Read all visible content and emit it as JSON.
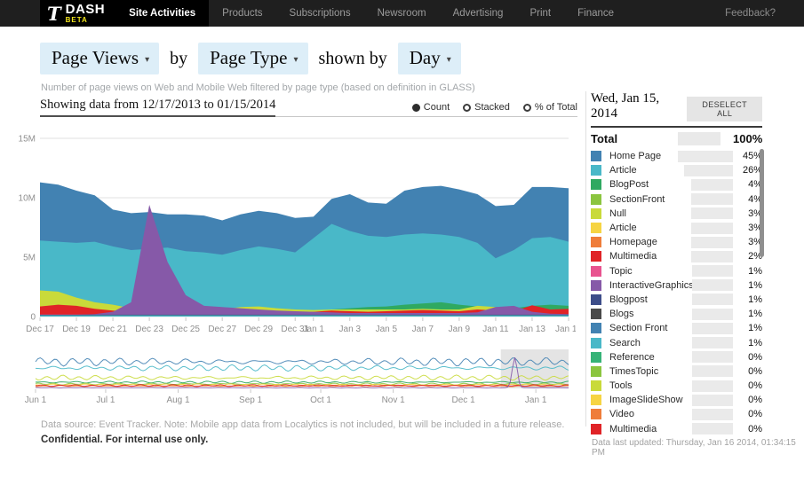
{
  "nav": {
    "logo": {
      "t": "T",
      "title": "DASH",
      "badge": "BETA"
    },
    "items": [
      {
        "label": "Site Activities",
        "active": true
      },
      {
        "label": "Products",
        "active": false
      },
      {
        "label": "Subscriptions",
        "active": false
      },
      {
        "label": "Newsroom",
        "active": false
      },
      {
        "label": "Advertising",
        "active": false
      },
      {
        "label": "Print",
        "active": false
      },
      {
        "label": "Finance",
        "active": false
      }
    ],
    "feedback": "Feedback?"
  },
  "controls": {
    "metric": "Page Views",
    "by": "by",
    "dimension": "Page Type",
    "shown_by": "shown by",
    "interval": "Day",
    "caret": "▾"
  },
  "subtitle": "Number of page views on Web and Mobile Web filtered by page type (based on definition in GLASS)",
  "toolbar": {
    "showing": "Showing data from 12/17/2013 to 01/15/2014",
    "modes": [
      {
        "label": "Count",
        "selected": true
      },
      {
        "label": "Stacked",
        "selected": false
      },
      {
        "label": "% of Total",
        "selected": false
      }
    ]
  },
  "chart_data": {
    "type": "area",
    "title": "Page Views by Page Type shown by Day",
    "main": {
      "ylabel": "page views",
      "ylim_millions": [
        0,
        15
      ],
      "y_ticks": [
        {
          "label": "0",
          "v": 0
        },
        {
          "label": "5M",
          "v": 5
        },
        {
          "label": "10M",
          "v": 10
        },
        {
          "label": "15M",
          "v": 15
        }
      ],
      "x_labels": [
        {
          "label": "Dec 17",
          "day": 0
        },
        {
          "label": "Dec 19",
          "day": 2
        },
        {
          "label": "Dec 21",
          "day": 4
        },
        {
          "label": "Dec 23",
          "day": 6
        },
        {
          "label": "Dec 25",
          "day": 8
        },
        {
          "label": "Dec 27",
          "day": 10
        },
        {
          "label": "Dec 29",
          "day": 12
        },
        {
          "label": "Dec 31",
          "day": 14
        },
        {
          "label": "Jan 1",
          "day": 15
        },
        {
          "label": "Jan 3",
          "day": 17
        },
        {
          "label": "Jan 5",
          "day": 19
        },
        {
          "label": "Jan 7",
          "day": 21
        },
        {
          "label": "Jan 9",
          "day": 23
        },
        {
          "label": "Jan 11",
          "day": 25
        },
        {
          "label": "Jan 13",
          "day": 27
        },
        {
          "label": "Jan 15",
          "day": 29
        }
      ],
      "date_range": [
        "12/17/2013",
        "01/15/2014"
      ],
      "values_unit": "millions",
      "series": [
        {
          "name": "Home Page",
          "color": "#4282b2",
          "values": [
            11.3,
            11.1,
            10.6,
            10.2,
            9.0,
            8.7,
            8.8,
            8.6,
            8.6,
            8.5,
            8.1,
            8.6,
            8.9,
            8.7,
            8.3,
            8.4,
            9.9,
            10.3,
            9.6,
            9.5,
            10.6,
            10.9,
            11.0,
            10.7,
            10.3,
            9.3,
            9.4,
            10.9,
            10.9,
            10.8
          ]
        },
        {
          "name": "Article",
          "color": "#49b8c8",
          "values": [
            6.4,
            6.3,
            6.2,
            6.3,
            5.9,
            5.6,
            5.7,
            5.8,
            5.5,
            5.4,
            5.2,
            5.6,
            5.9,
            5.7,
            5.4,
            6.6,
            7.8,
            7.2,
            6.8,
            6.7,
            6.9,
            7.0,
            6.9,
            6.7,
            6.2,
            4.9,
            5.6,
            6.6,
            6.7,
            6.3
          ]
        },
        {
          "name": "BlogPost",
          "color": "#2fa961",
          "values": [
            0.55,
            0.55,
            0.5,
            0.5,
            0.45,
            0.4,
            0.4,
            0.4,
            0.4,
            0.45,
            0.5,
            0.55,
            0.6,
            0.55,
            0.5,
            0.5,
            0.6,
            0.7,
            0.8,
            0.85,
            1.0,
            1.1,
            1.2,
            1.0,
            0.85,
            0.8,
            0.7,
            0.9,
            1.0,
            0.9
          ]
        },
        {
          "name": "SectionFront",
          "color": "#8bc53f",
          "flat": 0.45
        },
        {
          "name": "Null",
          "color": "#c9da3a",
          "values": [
            2.2,
            2.1,
            1.6,
            1.2,
            1.0,
            0.7,
            0.6,
            0.5,
            0.5,
            0.55,
            0.6,
            0.8,
            0.85,
            0.7,
            0.6,
            0.55,
            0.6,
            0.6,
            0.6,
            0.6,
            0.6,
            0.65,
            0.6,
            0.6,
            0.9,
            0.8,
            0.6,
            0.6,
            0.55,
            0.6
          ]
        },
        {
          "name": "Article (yellow)",
          "color": "#f6d443",
          "values": [
            0.5,
            0.45,
            0.4,
            0.4,
            0.35,
            0.3,
            0.3,
            0.3,
            0.3,
            0.3,
            0.35,
            0.5,
            0.55,
            0.45,
            0.4,
            0.35,
            0.4,
            0.4,
            0.4,
            0.45,
            0.4,
            0.4,
            0.4,
            0.4,
            0.6,
            0.5,
            0.4,
            0.45,
            0.4,
            0.4
          ]
        },
        {
          "name": "Homepage",
          "color": "#ef7d3a",
          "flat": 0.28
        },
        {
          "name": "Multimedia",
          "color": "#e02327",
          "values": [
            0.85,
            1.0,
            0.9,
            0.65,
            0.5,
            0.4,
            0.35,
            0.3,
            0.3,
            0.3,
            0.35,
            0.4,
            0.45,
            0.4,
            0.35,
            0.4,
            0.5,
            0.45,
            0.4,
            0.45,
            0.5,
            0.55,
            0.5,
            0.45,
            0.6,
            0.5,
            0.45,
            0.95,
            0.6,
            0.65
          ]
        },
        {
          "name": "Topic",
          "color": "#e8538f",
          "flat": 0.18
        },
        {
          "name": "InteractiveGraphics",
          "color": "#8659a8",
          "values": [
            0.15,
            0.15,
            0.15,
            0.2,
            0.4,
            1.2,
            9.4,
            4.6,
            1.8,
            0.9,
            0.8,
            0.7,
            0.6,
            0.5,
            0.45,
            0.4,
            0.35,
            0.3,
            0.3,
            0.3,
            0.3,
            0.3,
            0.3,
            0.3,
            0.35,
            0.8,
            0.9,
            0.4,
            0.25,
            0.2
          ]
        },
        {
          "name": "Blogpost",
          "color": "#3d4d89",
          "flat": 0.16
        },
        {
          "name": "Blogs",
          "color": "#4a4a4a",
          "flat": 0.14
        },
        {
          "name": "Section Front",
          "color": "#4282b2",
          "flat": 0.12
        },
        {
          "name": "Search",
          "color": "#49b8c8",
          "flat": 0.1
        }
      ]
    },
    "mini": {
      "x_labels": [
        {
          "label": "Jun 1",
          "day": 0
        },
        {
          "label": "Jul 1",
          "day": 30
        },
        {
          "label": "Aug 1",
          "day": 61
        },
        {
          "label": "Sep 1",
          "day": 92
        },
        {
          "label": "Oct 1",
          "day": 122
        },
        {
          "label": "Nov 1",
          "day": 153
        },
        {
          "label": "Dec 1",
          "day": 183
        },
        {
          "label": "Jan 1",
          "day": 214
        }
      ],
      "total_days": 228,
      "brush_start_day": 199,
      "brush_range": "12/17/2013 to 01/15/2014",
      "series": [
        {
          "name": "Home Page",
          "color": "#4282b2",
          "base": 30,
          "amp": 4
        },
        {
          "name": "Article",
          "color": "#49b8c8",
          "base": 23,
          "amp": 3
        },
        {
          "name": "Null",
          "color": "#c9da3a",
          "base": 12,
          "amp": 2.5
        },
        {
          "name": "BlogPost",
          "color": "#2fa961",
          "base": 7,
          "amp": 1.2
        },
        {
          "name": "SectionFront",
          "color": "#8bc53f",
          "base": 5,
          "amp": 1
        },
        {
          "name": "Article (yellow)",
          "color": "#f6d443",
          "base": 4,
          "amp": 1
        },
        {
          "name": "Homepage",
          "color": "#ef7d3a",
          "base": 2.6,
          "amp": 0.6
        },
        {
          "name": "Multimedia",
          "color": "#e02327",
          "base": 3.2,
          "amp": 1
        },
        {
          "name": "InteractiveGraphics",
          "color": "#8659a8",
          "base": 0.8,
          "amp": 0.3,
          "spike_day": 205,
          "spike": 34
        }
      ]
    }
  },
  "footer": {
    "source": "Data source: Event Tracker. Note: Mobile app data from Localytics is not included, but will be included in a future release.",
    "confidential": "Confidential. For internal use only."
  },
  "panel": {
    "date": "Wed, Jan 15, 2014",
    "deselect": "DESELECT ALL",
    "total_label": "Total",
    "total_value": "100%",
    "items": [
      {
        "label": "Home Page",
        "pct": 45,
        "pct_text": "45%",
        "color": "#4282b2"
      },
      {
        "label": "Article",
        "pct": 26,
        "pct_text": "26%",
        "color": "#49b8c8"
      },
      {
        "label": "BlogPost",
        "pct": 4,
        "pct_text": "4%",
        "color": "#2fa961"
      },
      {
        "label": "SectionFront",
        "pct": 4,
        "pct_text": "4%",
        "color": "#8bc53f"
      },
      {
        "label": "Null",
        "pct": 3,
        "pct_text": "3%",
        "color": "#c9da3a"
      },
      {
        "label": "Article",
        "pct": 3,
        "pct_text": "3%",
        "color": "#f6d443"
      },
      {
        "label": "Homepage",
        "pct": 3,
        "pct_text": "3%",
        "color": "#ef7d3a"
      },
      {
        "label": "Multimedia",
        "pct": 2,
        "pct_text": "2%",
        "color": "#e02327"
      },
      {
        "label": "Topic",
        "pct": 1,
        "pct_text": "1%",
        "color": "#e8538f"
      },
      {
        "label": "InteractiveGraphics",
        "pct": 1,
        "pct_text": "1%",
        "color": "#8659a8"
      },
      {
        "label": "Blogpost",
        "pct": 1,
        "pct_text": "1%",
        "color": "#3d4d89"
      },
      {
        "label": "Blogs",
        "pct": 1,
        "pct_text": "1%",
        "color": "#4a4a4a"
      },
      {
        "label": "Section Front",
        "pct": 1,
        "pct_text": "1%",
        "color": "#4282b2"
      },
      {
        "label": "Search",
        "pct": 1,
        "pct_text": "1%",
        "color": "#49b8c8"
      },
      {
        "label": "Reference",
        "pct": 0,
        "pct_text": "0%",
        "color": "#36b377"
      },
      {
        "label": "TimesTopic",
        "pct": 0,
        "pct_text": "0%",
        "color": "#8bc53f"
      },
      {
        "label": "Tools",
        "pct": 0,
        "pct_text": "0%",
        "color": "#c9da3a"
      },
      {
        "label": "ImageSlideShow",
        "pct": 0,
        "pct_text": "0%",
        "color": "#f6d443"
      },
      {
        "label": "Video",
        "pct": 0,
        "pct_text": "0%",
        "color": "#ef7d3a"
      },
      {
        "label": "Multimedia",
        "pct": 0,
        "pct_text": "0%",
        "color": "#e02327"
      }
    ],
    "last_updated": "Data last updated: Thursday, Jan 16 2014, 01:34:15 PM"
  }
}
